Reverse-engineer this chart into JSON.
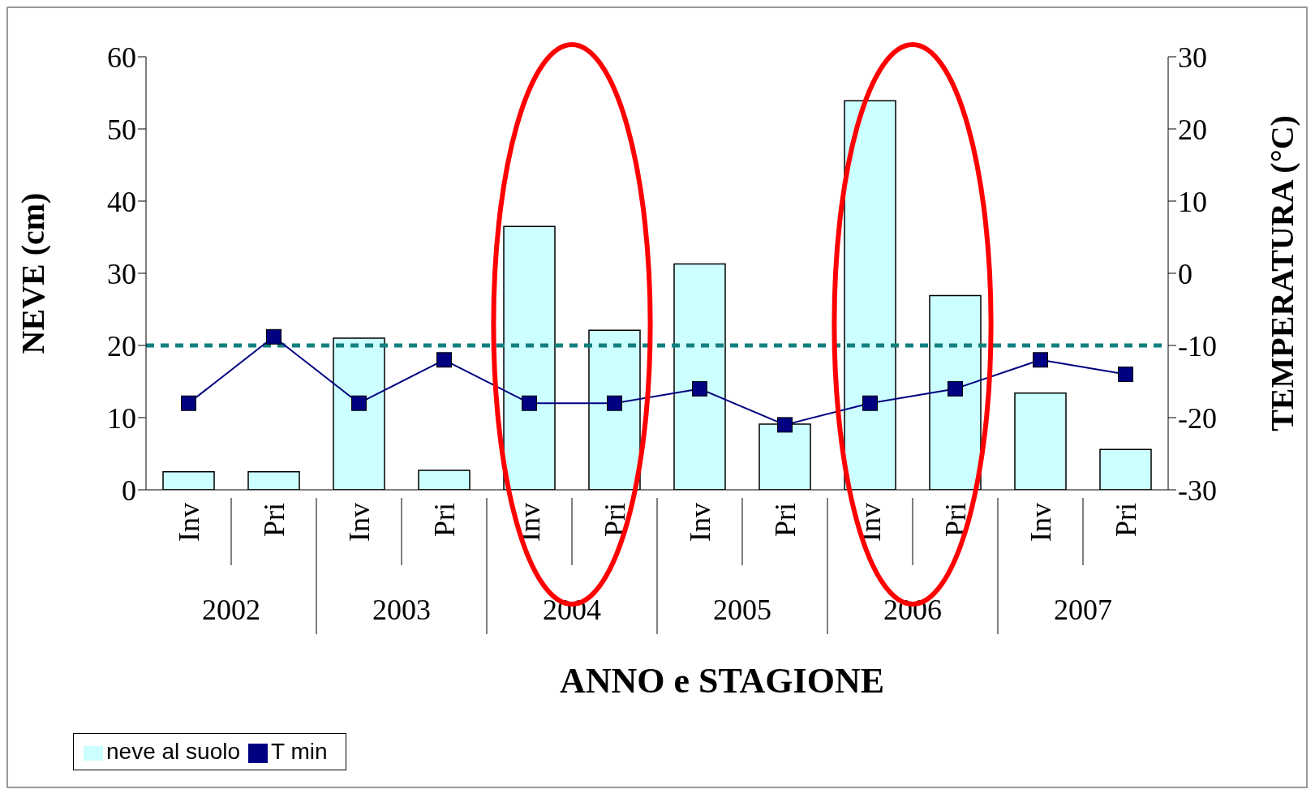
{
  "chart_data": {
    "type": "bar",
    "xlabel": "ANNO e STAGIONE",
    "ylabel": "NEVE (cm)",
    "y2label": "TEMPERATURA (°C)",
    "categories": [
      "Inv",
      "Pri",
      "Inv",
      "Pri",
      "Inv",
      "Pri",
      "Inv",
      "Pri",
      "Inv",
      "Pri",
      "Inv",
      "Pri"
    ],
    "annotations": [
      "2002",
      "2003",
      "2004",
      "2005",
      "2006",
      "2007"
    ],
    "series": [
      {
        "name": "neve al suolo",
        "color": "#ccffff",
        "values": [
          2.5,
          2.5,
          21,
          2.7,
          36.5,
          22.1,
          31.3,
          9.1,
          53.9,
          26.9,
          13.4,
          5.6
        ]
      },
      {
        "name": "T min",
        "type": "line",
        "axis": "y2",
        "color": "#000080",
        "values": [
          -18,
          -8.8,
          -18,
          -12,
          -18,
          -18,
          -16,
          -21,
          -18,
          -16,
          -12,
          -14
        ]
      }
    ],
    "ylim": [
      0,
      60
    ],
    "yticks": [
      0,
      10,
      20,
      30,
      40,
      50,
      60
    ],
    "y2lim": [
      -30,
      30
    ],
    "y2ticks": [
      -30,
      -20,
      -10,
      0,
      10,
      20,
      30
    ],
    "ref_lines": [
      {
        "axis": "y",
        "value": 20,
        "color": "#138080",
        "line_style": "dashed"
      }
    ],
    "grid": false,
    "legend": "bottom left",
    "marker": "square",
    "line_style": "solid"
  }
}
